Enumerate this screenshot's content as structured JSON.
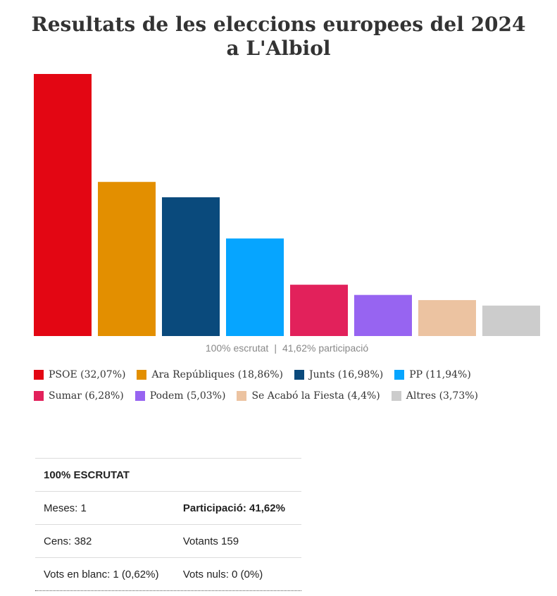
{
  "title": "Resultats de les eleccions europees del 2024 a L'Albiol",
  "status": {
    "scrutinized": "100% escrutat",
    "separator": "|",
    "participation": "41,62% participació"
  },
  "chart_data": {
    "type": "bar",
    "categories": [
      "PSOE",
      "Ara Repúbliques",
      "Junts",
      "PP",
      "Sumar",
      "Podem",
      "Se Acabó la Fiesta",
      "Altres"
    ],
    "values": [
      32.07,
      18.86,
      16.98,
      11.94,
      6.28,
      5.03,
      4.4,
      3.73
    ],
    "colors": [
      "#e30613",
      "#e38f00",
      "#0a4a7c",
      "#06a5ff",
      "#e2215b",
      "#9764f1",
      "#ecc3a1",
      "#cccccc"
    ],
    "legend": [
      "PSOE (32,07%)",
      "Ara Repúbliques (18,86%)",
      "Junts (16,98%)",
      "PP (11,94%)",
      "Sumar (6,28%)",
      "Podem (5,03%)",
      "Se Acabó la Fiesta (4,4%)",
      "Altres (3,73%)"
    ],
    "legend_placement": "bottom",
    "grid": false
  },
  "summary": {
    "header": "100% ESCRUTAT",
    "rows": [
      [
        "Meses: 1",
        "Participació: 41,62%"
      ],
      [
        "Cens: 382",
        "Votants 159"
      ],
      [
        "Vots en blanc: 1 (0,62%)",
        "Vots nuls: 0 (0%)"
      ]
    ]
  }
}
